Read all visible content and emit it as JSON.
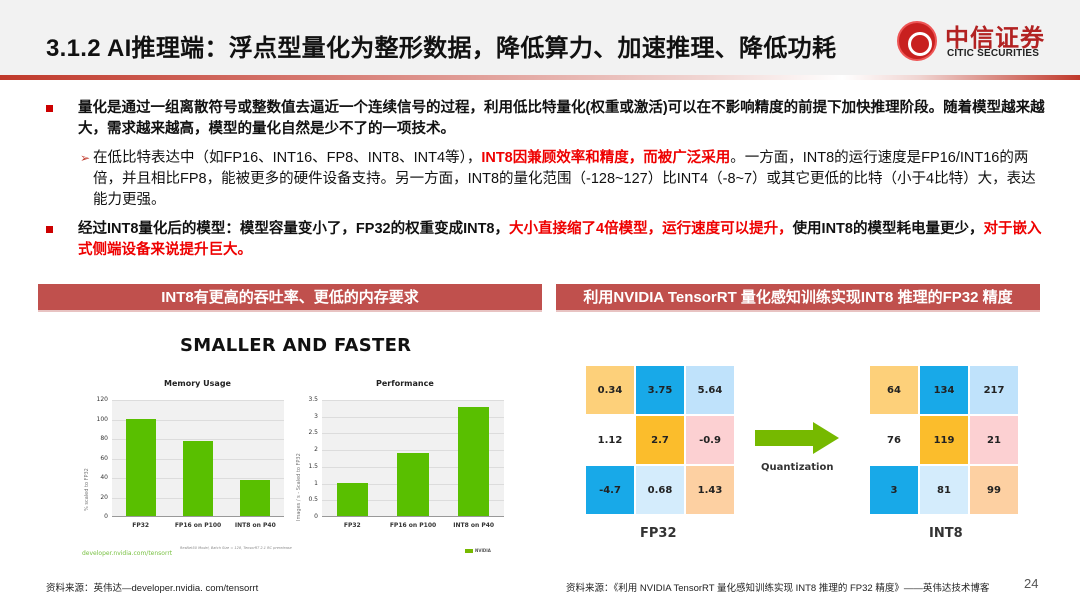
{
  "header": {
    "title": "3.1.2 AI推理端：浮点型量化为整形数据，降低算力、加速推理、降低功耗",
    "logo_cn": "中信证券",
    "logo_en": "CITIC SECURITIES"
  },
  "bullets": [
    {
      "level": 1,
      "segments": [
        {
          "text": "量化是通过一组离散符号或整数值去逼近一个连续信号的过程，利用低比特量化(权重或激活)可以在不影响精度的前提下加快推理阶段。随着模型越来越大，需求越来越高，模型的量化自然是少不了的一项技术。",
          "highlight": false
        }
      ]
    },
    {
      "level": 2,
      "segments": [
        {
          "text": "在低比特表达中（如FP16、INT16、FP8、INT8、INT4等），",
          "highlight": false
        },
        {
          "text": "INT8因兼顾效率和精度，而被广泛采用",
          "highlight": true
        },
        {
          "text": "。一方面，INT8的运行速度是FP16/INT16的两倍，并且相比FP8，能被更多的硬件设备支持。另一方面，INT8的量化范围（-128~127）比INT4（-8~7）或其它更低的比特（小于4比特）大，表达能力更强。",
          "highlight": false
        }
      ]
    },
    {
      "level": 1,
      "segments": [
        {
          "text": "经过INT8量化后的模型：模型容量变小了，FP32的权重变成INT8，",
          "highlight": false
        },
        {
          "text": "大小直接缩了4倍模型，运行速度可以提升，",
          "highlight": true
        },
        {
          "text": "使用INT8的模型耗电量更少，",
          "highlight": false
        },
        {
          "text": "对于嵌入式侧端设备来说提升巨大。",
          "highlight": true
        }
      ]
    }
  ],
  "left_panel": {
    "banner": "INT8有更高的吞吐率、更低的内存要求",
    "figure_title": "SMALLER AND FASTER",
    "source_link": "developer.nvidia.com/tensorrt",
    "footnote": "ResNet50 Model, Batch Size = 128, TensorRT 2.1 RC prerelease",
    "nvidia_logo": "NVIDIA"
  },
  "right_panel": {
    "banner": "利用NVIDIA TensorRT 量化感知训练实现INT8 推理的FP32 精度",
    "arrow_label": "Quantization",
    "fp32_label": "FP32",
    "int8_label": "INT8",
    "fp32_matrix": [
      [
        {
          "v": "0.34",
          "c": "#fdd07a"
        },
        {
          "v": "3.75",
          "c": "#18a9e8"
        },
        {
          "v": "5.64",
          "c": "#bfe2fb"
        }
      ],
      [
        {
          "v": "1.12",
          "c": "#ffffff"
        },
        {
          "v": "2.7",
          "c": "#fbbd2c"
        },
        {
          "v": "-0.9",
          "c": "#fcd0d2"
        }
      ],
      [
        {
          "v": "-4.7",
          "c": "#18a9e8"
        },
        {
          "v": "0.68",
          "c": "#d4ecfc"
        },
        {
          "v": "1.43",
          "c": "#fdd0a2"
        }
      ]
    ],
    "int8_matrix": [
      [
        {
          "v": "64",
          "c": "#fdd07a"
        },
        {
          "v": "134",
          "c": "#18a9e8"
        },
        {
          "v": "217",
          "c": "#bfe2fb"
        }
      ],
      [
        {
          "v": "76",
          "c": "#ffffff"
        },
        {
          "v": "119",
          "c": "#fbbd2c"
        },
        {
          "v": "21",
          "c": "#fcd0d2"
        }
      ],
      [
        {
          "v": "3",
          "c": "#18a9e8"
        },
        {
          "v": "81",
          "c": "#d4ecfc"
        },
        {
          "v": "99",
          "c": "#fdd0a2"
        }
      ]
    ]
  },
  "chart_data": [
    {
      "type": "bar",
      "title": "Memory Usage",
      "categories": [
        "FP32",
        "FP16 on P100",
        "INT8 on P40"
      ],
      "values": [
        100,
        77,
        37
      ],
      "xlabel": "",
      "ylabel": "% scaled to FP32",
      "ylim": [
        0,
        120
      ],
      "yticks": [
        "0",
        "20",
        "40",
        "60",
        "80",
        "100",
        "120"
      ],
      "grid": true,
      "color": "#59bf00"
    },
    {
      "type": "bar",
      "title": "Performance",
      "categories": [
        "FP32",
        "FP16 on P100",
        "INT8 on P40"
      ],
      "values": [
        1.0,
        1.9,
        3.25
      ],
      "xlabel": "",
      "ylabel": "Images / s - Scaled to FP32",
      "ylim": [
        0,
        3.5
      ],
      "yticks": [
        "0",
        "0.5",
        "1",
        "1.5",
        "2",
        "2.5",
        "3",
        "3.5"
      ],
      "grid": true,
      "color": "#59bf00"
    }
  ],
  "footer": {
    "left": "资料来源：英伟达—developer.nvidia. com/tensorrt",
    "right": "资料来源：《利用 NVIDIA TensorRT 量化感知训练实现 INT8 推理的 FP32 精度》——英伟达技术博客",
    "page": "24"
  }
}
